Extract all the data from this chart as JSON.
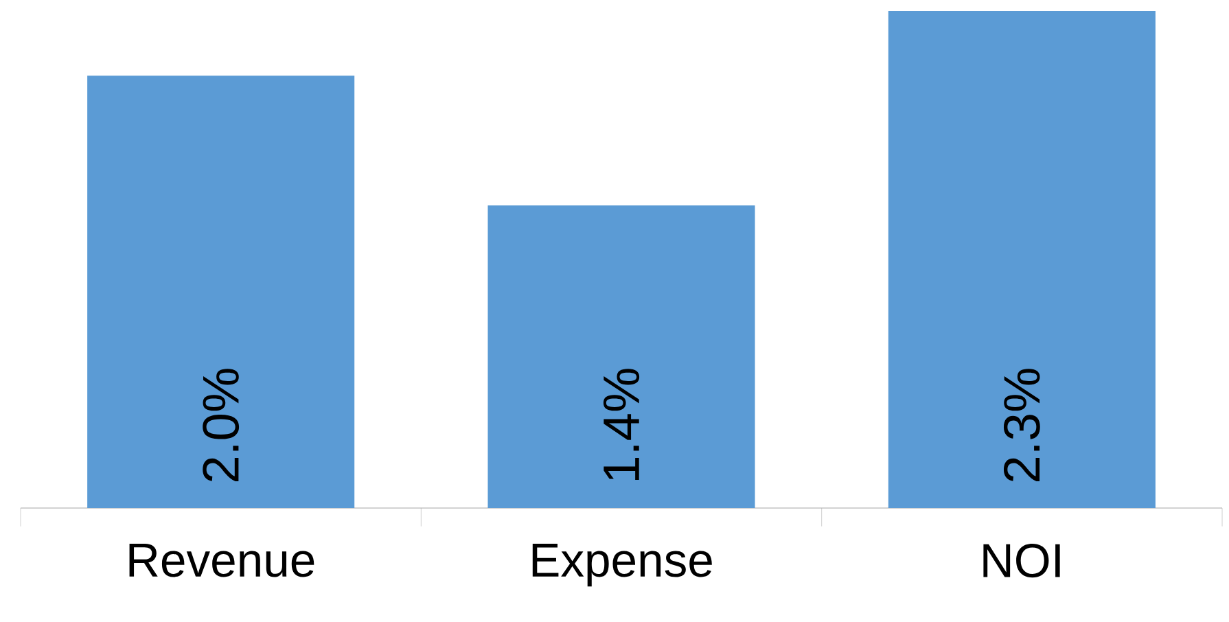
{
  "chart_data": {
    "type": "bar",
    "categories": [
      "Revenue",
      "Expense",
      "NOI"
    ],
    "values": [
      2.0,
      1.4,
      2.3
    ],
    "value_labels": [
      "2.0%",
      "1.4%",
      "2.3%"
    ],
    "color": "#5b9bd5"
  }
}
